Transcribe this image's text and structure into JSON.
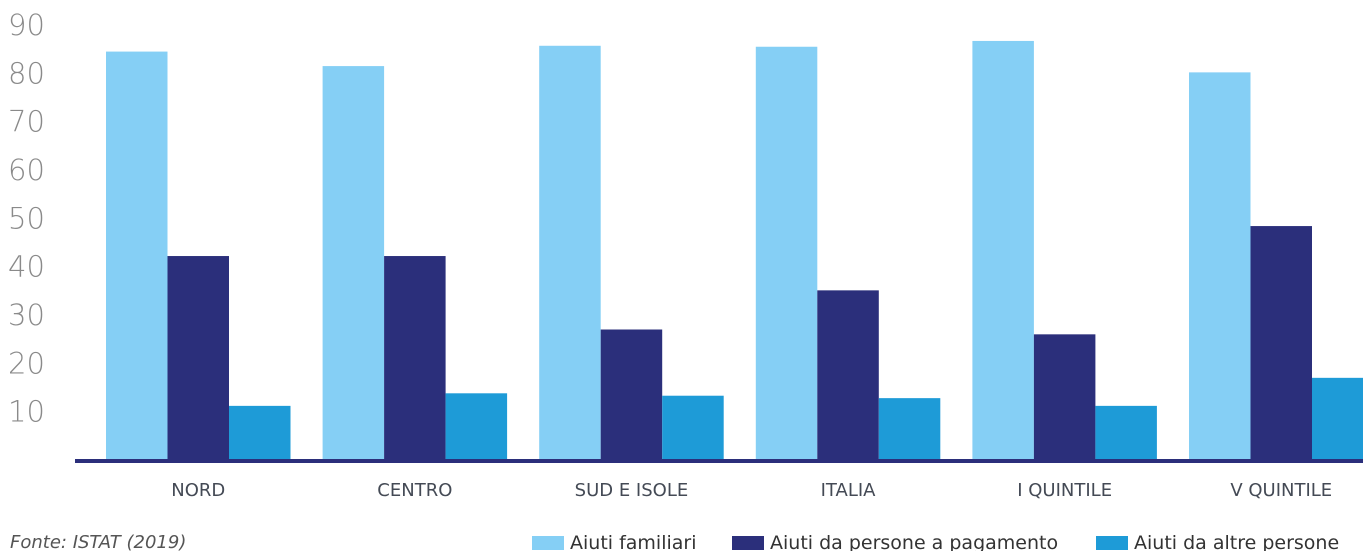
{
  "chart_data": {
    "type": "bar",
    "categories": [
      "NORD",
      "CENTRO",
      "SUD E ISOLE",
      "ITALIA",
      "I QUINTILE",
      "V QUINTILE"
    ],
    "series": [
      {
        "name": "Aiuti familiari",
        "values": [
          84.5,
          81.5,
          85.7,
          85.5,
          86.7,
          80.2
        ],
        "color": "#85cff5"
      },
      {
        "name": "Aiuti da persone a pagamento",
        "values": [
          42.2,
          42.2,
          27.0,
          35.1,
          26.0,
          48.4
        ],
        "color": "#2b2f7b"
      },
      {
        "name": "Aiuti da altre persone",
        "values": [
          11.2,
          13.8,
          13.3,
          12.8,
          11.2,
          17.0
        ],
        "color": "#1e9bd7"
      }
    ],
    "yticks": [
      10,
      20,
      30,
      40,
      50,
      60,
      70,
      80,
      90
    ],
    "ylim": [
      0,
      90
    ],
    "title": "",
    "xlabel": "",
    "ylabel": "",
    "grid": false,
    "legend": "bottom-right",
    "axis_color": "#2b2f7b"
  },
  "source": "Fonte: ISTAT (2019)"
}
